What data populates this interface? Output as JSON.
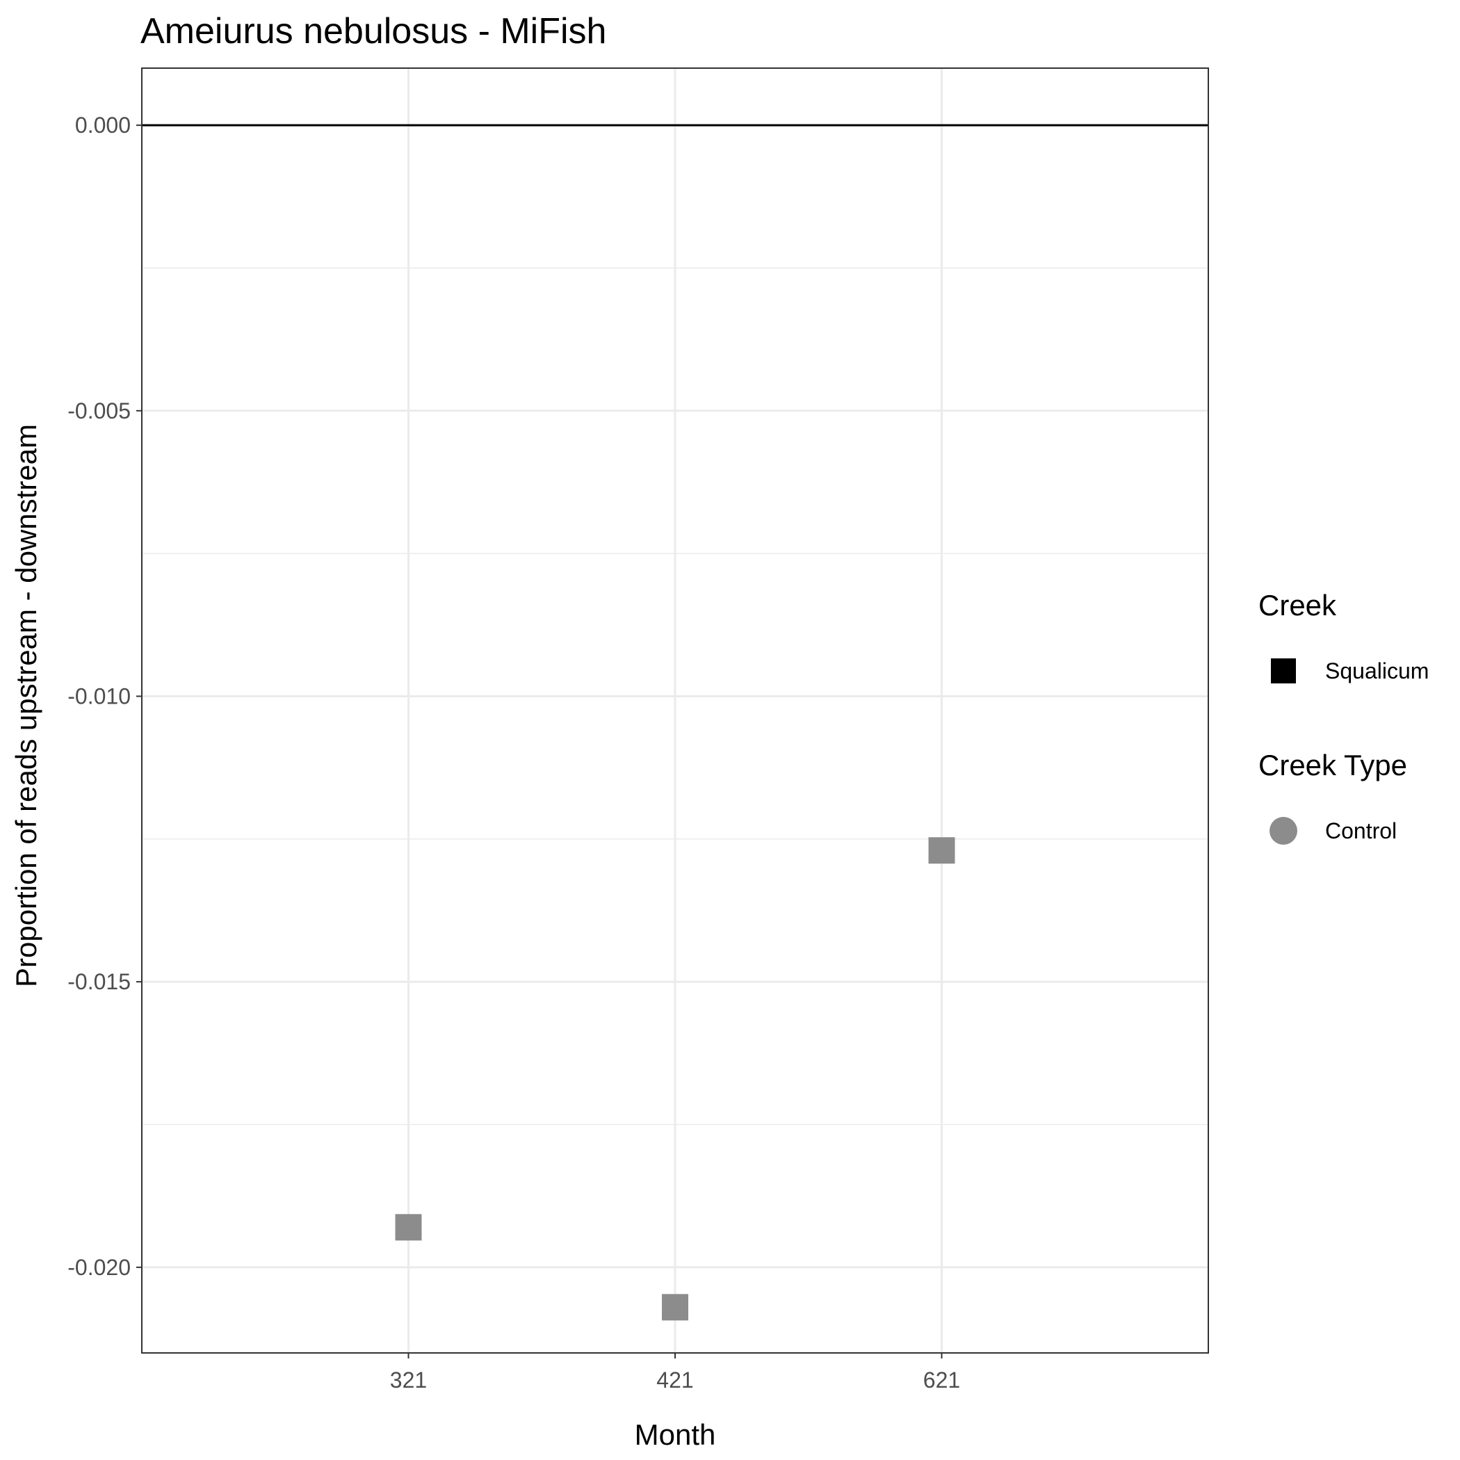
{
  "chart_data": {
    "type": "scatter",
    "title": "Ameiurus nebulosus - MiFish",
    "xlabel": "Month",
    "ylabel": "Proportion of reads upstream - downstream",
    "categories": [
      "321",
      "421",
      "621"
    ],
    "series": [
      {
        "name": "Squalicum",
        "creek_type": "Control",
        "values": [
          -0.0193,
          -0.0207,
          -0.0127
        ]
      }
    ],
    "ylim": [
      -0.0215,
      0.001
    ],
    "yticks": [
      0.0,
      -0.005,
      -0.01,
      -0.015,
      -0.02
    ],
    "ytick_labels": [
      "0.000",
      "-0.005",
      "-0.010",
      "-0.015",
      "-0.020"
    ],
    "reference_line": 0.0,
    "grid": true,
    "legend_position": "right",
    "legends": [
      {
        "title": "Creek",
        "items": [
          {
            "label": "Squalicum",
            "shape": "square",
            "color": "#000000"
          }
        ]
      },
      {
        "title": "Creek Type",
        "items": [
          {
            "label": "Control",
            "shape": "circle",
            "color": "#8c8c8c"
          }
        ]
      }
    ],
    "point_color": "#8c8c8c"
  }
}
